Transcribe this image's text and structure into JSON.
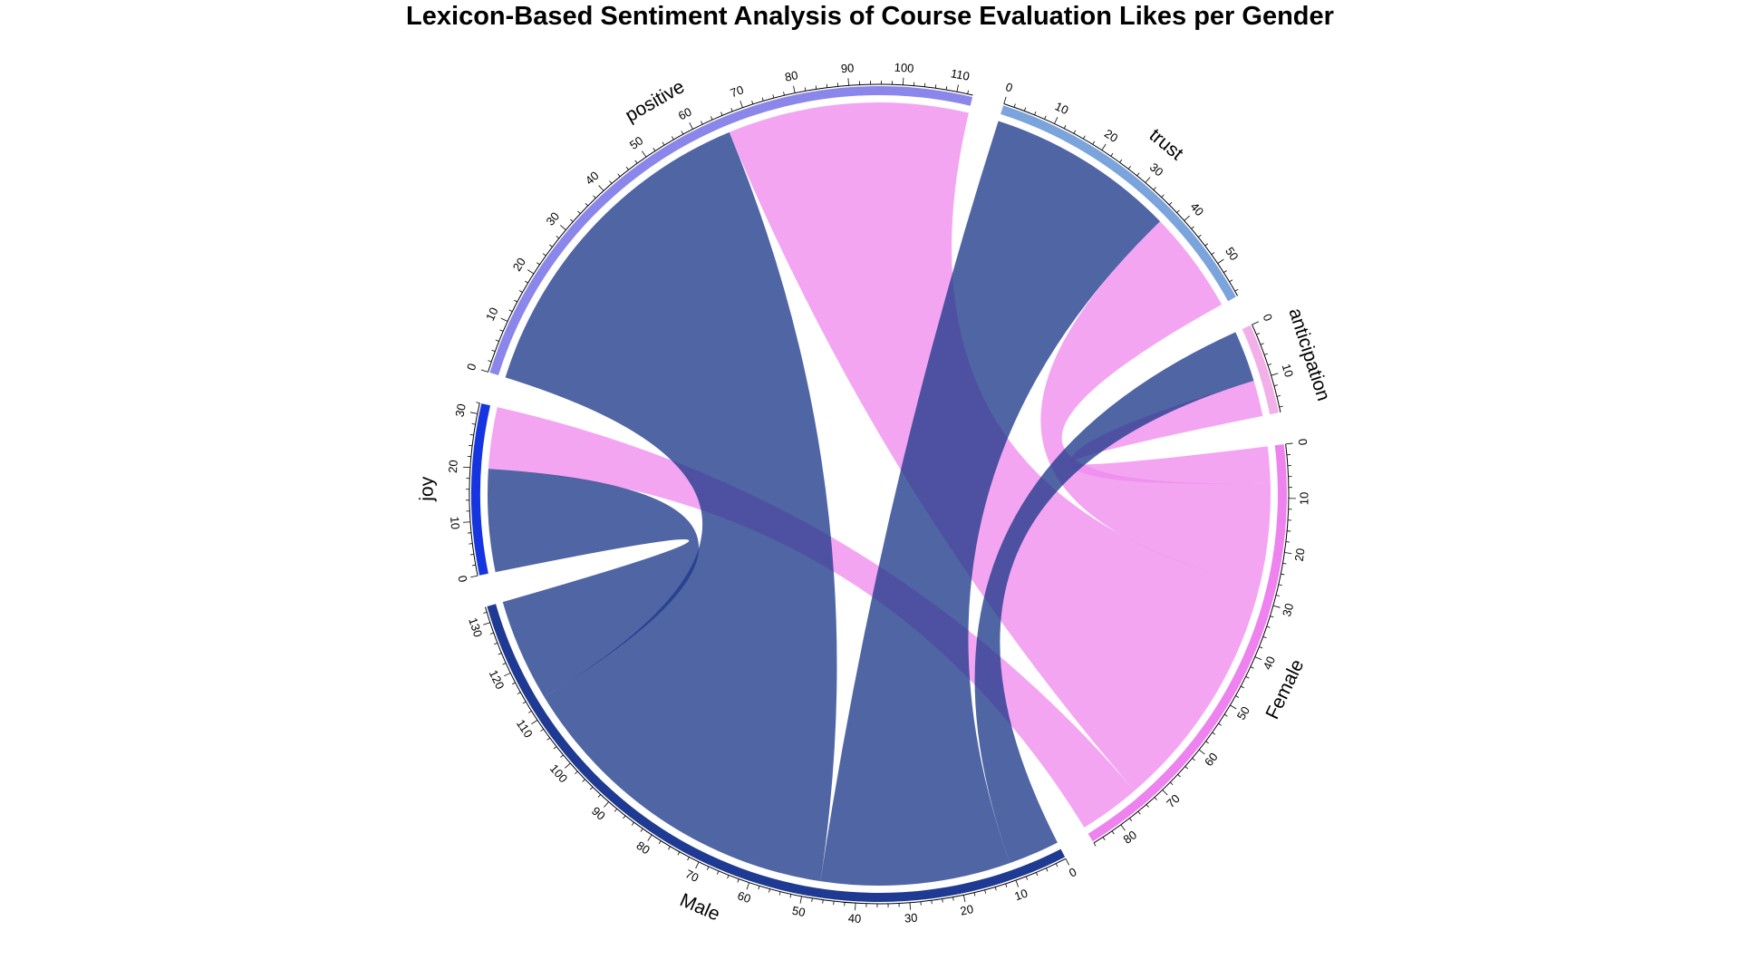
{
  "chart_data": {
    "type": "chord",
    "title": "Lexicon-Based Sentiment Analysis of Course Evaluation Likes per Gender",
    "sectors": [
      {
        "name": "Female",
        "total": 86,
        "color": "#EE82EE",
        "tick_step": 10
      },
      {
        "name": "Male",
        "total": 133,
        "color": "#1F3A93",
        "tick_step": 10
      },
      {
        "name": "joy",
        "total": 32,
        "color": "#1535E0",
        "tick_step": 10
      },
      {
        "name": "positive",
        "total": 113,
        "color": "#8B86EA",
        "tick_step": 10
      },
      {
        "name": "trust",
        "total": 57,
        "color": "#7BA3DC",
        "tick_step": 10
      },
      {
        "name": "anticipation",
        "total": 17,
        "color": "#F3B0E8",
        "tick_step": 10
      }
    ],
    "links": [
      {
        "from": "Female",
        "to": "positive",
        "value": 47
      },
      {
        "from": "Female",
        "to": "trust",
        "value": 20
      },
      {
        "from": "Female",
        "to": "joy",
        "value": 12
      },
      {
        "from": "Female",
        "to": "anticipation",
        "value": 7
      },
      {
        "from": "Male",
        "to": "positive",
        "value": 66
      },
      {
        "from": "Male",
        "to": "trust",
        "value": 37
      },
      {
        "from": "Male",
        "to": "joy",
        "value": 20
      },
      {
        "from": "Male",
        "to": "anticipation",
        "value": 10
      }
    ],
    "link_colors": {
      "Female": "#F08CEE",
      "Male": "#1F3A8A"
    },
    "link_opacity": 0.78
  }
}
